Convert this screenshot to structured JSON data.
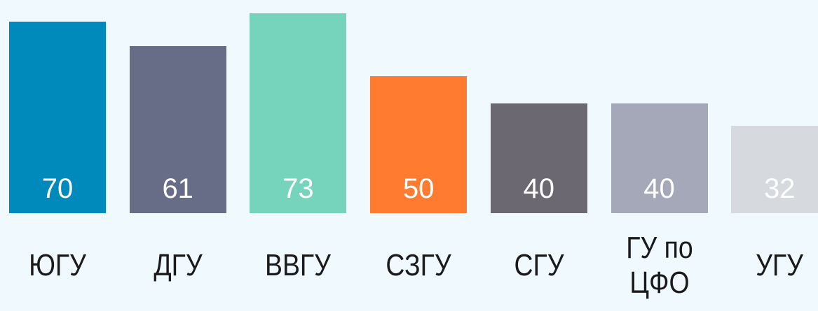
{
  "chart_data": {
    "type": "bar",
    "categories": [
      "ЮГУ",
      "ДГУ",
      "ВВГУ",
      "СЗГУ",
      "СГУ",
      "ГУ по ЦФО",
      "УГУ"
    ],
    "values": [
      70,
      61,
      73,
      50,
      40,
      40,
      32
    ],
    "colors": [
      "#0089bb",
      "#686d87",
      "#77d4bc",
      "#fe7b30",
      "#6c6872",
      "#a5a8b8",
      "#d6d9de"
    ],
    "ylim": [
      0,
      75
    ]
  }
}
